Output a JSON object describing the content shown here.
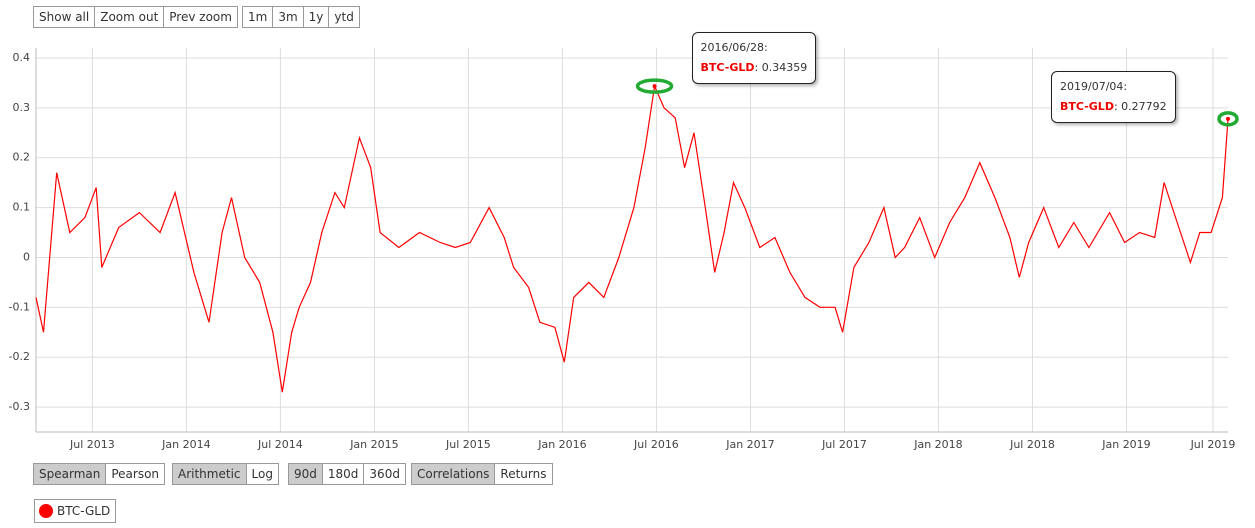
{
  "chart_data": {
    "type": "line",
    "toolbar_top": [
      [
        "Show all",
        "Zoom out",
        "Prev zoom"
      ],
      [
        "1m",
        "3m",
        "1y",
        "ytd"
      ]
    ],
    "toolbar_bottom": [
      {
        "options": [
          "Spearman",
          "Pearson"
        ],
        "selected": "Spearman"
      },
      {
        "options": [
          "Arithmetic",
          "Log"
        ],
        "selected": "Arithmetic"
      },
      {
        "options": [
          "90d",
          "180d",
          "360d"
        ],
        "selected": "90d"
      },
      {
        "options": [
          "Correlations",
          "Returns"
        ],
        "selected": "Correlations"
      }
    ],
    "xlim": [
      2013.2,
      2019.54
    ],
    "xticks": [
      {
        "value": 2013.5,
        "label": "Jul 2013"
      },
      {
        "value": 2014.0,
        "label": "Jan 2014"
      },
      {
        "value": 2014.5,
        "label": "Jul 2014"
      },
      {
        "value": 2015.0,
        "label": "Jan 2015"
      },
      {
        "value": 2015.5,
        "label": "Jul 2015"
      },
      {
        "value": 2016.0,
        "label": "Jan 2016"
      },
      {
        "value": 2016.5,
        "label": "Jul 2016"
      },
      {
        "value": 2017.0,
        "label": "Jan 2017"
      },
      {
        "value": 2017.5,
        "label": "Jul 2017"
      },
      {
        "value": 2018.0,
        "label": "Jan 2018"
      },
      {
        "value": 2018.5,
        "label": "Jul 2018"
      },
      {
        "value": 2019.0,
        "label": "Jan 2019"
      },
      {
        "value": 2019.46,
        "label": "Jul 2019"
      }
    ],
    "ylim": [
      -0.35,
      0.42
    ],
    "yticks": [
      0.4,
      0.3,
      0.2,
      0.1,
      0,
      -0.1,
      -0.2,
      -0.3
    ],
    "grid": true,
    "x": [
      2013.2,
      2013.24,
      2013.31,
      2013.38,
      2013.46,
      2013.52,
      2013.55,
      2013.64,
      2013.75,
      2013.86,
      2013.94,
      2013.99,
      2014.04,
      2014.12,
      2014.19,
      2014.24,
      2014.31,
      2014.39,
      2014.46,
      2014.51,
      2014.56,
      2014.6,
      2014.66,
      2014.72,
      2014.79,
      2014.84,
      2014.92,
      2014.98,
      2015.03,
      2015.13,
      2015.24,
      2015.35,
      2015.43,
      2015.51,
      2015.61,
      2015.69,
      2015.74,
      2015.82,
      2015.88,
      2015.96,
      2016.01,
      2016.06,
      2016.14,
      2016.22,
      2016.3,
      2016.38,
      2016.44,
      2016.49,
      2016.54,
      2016.6,
      2016.65,
      2016.7,
      2016.76,
      2016.81,
      2016.86,
      2016.91,
      2016.97,
      2017.05,
      2017.13,
      2017.21,
      2017.29,
      2017.37,
      2017.45,
      2017.49,
      2017.55,
      2017.63,
      2017.71,
      2017.77,
      2017.82,
      2017.9,
      2017.98,
      2018.06,
      2018.14,
      2018.22,
      2018.3,
      2018.38,
      2018.43,
      2018.48,
      2018.56,
      2018.64,
      2018.72,
      2018.8,
      2018.91,
      2018.99,
      2019.07,
      2019.15,
      2019.2,
      2019.27,
      2019.34,
      2019.39,
      2019.45,
      2019.51,
      2019.54
    ],
    "series": [
      {
        "name": "BTC-GLD",
        "color": "#ff0000",
        "values": [
          -0.08,
          -0.15,
          0.17,
          0.05,
          0.08,
          0.14,
          -0.02,
          0.06,
          0.09,
          0.05,
          0.13,
          0.05,
          -0.03,
          -0.13,
          0.05,
          0.12,
          0.0,
          -0.05,
          -0.15,
          -0.27,
          -0.15,
          -0.1,
          -0.05,
          0.05,
          0.13,
          0.1,
          0.24,
          0.18,
          0.05,
          0.02,
          0.05,
          0.03,
          0.02,
          0.03,
          0.1,
          0.04,
          -0.02,
          -0.06,
          -0.13,
          -0.14,
          -0.21,
          -0.08,
          -0.05,
          -0.08,
          0.0,
          0.1,
          0.22,
          0.34359,
          0.3,
          0.28,
          0.18,
          0.25,
          0.1,
          -0.03,
          0.05,
          0.15,
          0.1,
          0.02,
          0.04,
          -0.03,
          -0.08,
          -0.1,
          -0.1,
          -0.15,
          -0.02,
          0.03,
          0.1,
          0.0,
          0.02,
          0.08,
          0.0,
          0.07,
          0.12,
          0.19,
          0.12,
          0.04,
          -0.04,
          0.03,
          0.1,
          0.02,
          0.07,
          0.02,
          0.09,
          0.03,
          0.05,
          0.04,
          0.15,
          0.07,
          -0.01,
          0.05,
          0.05,
          0.12,
          0.27792
        ]
      }
    ],
    "annotations": [
      {
        "date": "2016/06/28:",
        "series": "BTC-GLD",
        "x": 2016.49,
        "value": 0.34359,
        "marker_color": "#22aa33"
      },
      {
        "date": "2019/07/04:",
        "series": "BTC-GLD",
        "x": 2019.54,
        "value": 0.27792,
        "marker_color": "#22aa33"
      }
    ]
  }
}
